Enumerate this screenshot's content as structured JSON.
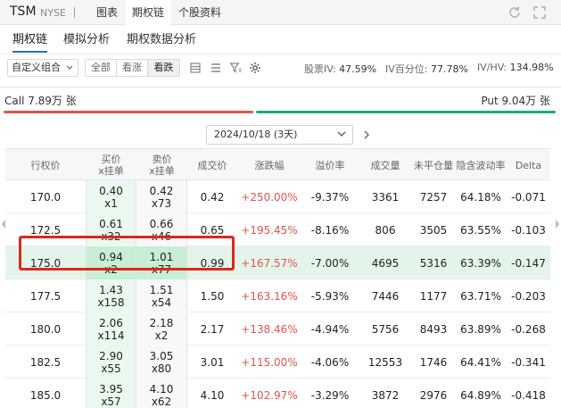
{
  "header": {
    "ticker": "TSM",
    "exchange": "NYSE",
    "tabs": [
      {
        "label": "图表"
      },
      {
        "label": "期权链"
      },
      {
        "label": "个股资料"
      }
    ]
  },
  "subtabs": [
    {
      "label": "期权链"
    },
    {
      "label": "模拟分析"
    },
    {
      "label": "期权数据分析"
    }
  ],
  "toolbar": {
    "combo": "自定义组合",
    "filters": [
      "全部",
      "看涨",
      "看跌"
    ],
    "stats": {
      "iv_label": "股票IV:",
      "iv_value": "47.59%",
      "ivpct_label": "IV百分位:",
      "ivpct_value": "77.78%",
      "ivhv_label": "IV/HV:",
      "ivhv_value": "134.98%"
    }
  },
  "summary": {
    "call": "Call 7.89万 张",
    "put": "Put 9.04万 张",
    "colors": {
      "call": "#e5534b",
      "put": "#1fae6b"
    }
  },
  "expiry": {
    "selected": "2024/10/18 (3天)"
  },
  "table": {
    "headers": {
      "strike": "行权价",
      "bid_1": "买价",
      "bid_2": "x挂单",
      "ask_1": "卖价",
      "ask_2": "x挂单",
      "last": "成交价",
      "change": "涨跌幅",
      "premium": "溢价率",
      "volume": "成交量",
      "oi": "未平仓量",
      "iv": "隐含波动率",
      "delta": "Delta"
    },
    "rows": [
      {
        "strike": "170.0",
        "bid": "0.40",
        "bid_size": "x1",
        "ask": "0.42",
        "ask_size": "x73",
        "last": "0.42",
        "change": "+250.00%",
        "premium": "-9.37%",
        "volume": "3361",
        "oi": "7257",
        "iv": "64.18%",
        "delta": "-0.071"
      },
      {
        "strike": "172.5",
        "bid": "0.61",
        "bid_size": "x32",
        "ask": "0.66",
        "ask_size": "x46",
        "last": "0.65",
        "change": "+195.45%",
        "premium": "-8.16%",
        "volume": "806",
        "oi": "3505",
        "iv": "63.55%",
        "delta": "-0.103"
      },
      {
        "strike": "175.0",
        "bid": "0.94",
        "bid_size": "x2",
        "ask": "1.01",
        "ask_size": "x77",
        "last": "0.99",
        "change": "+167.57%",
        "premium": "-7.00%",
        "volume": "4695",
        "oi": "5316",
        "iv": "63.39%",
        "delta": "-0.147"
      },
      {
        "strike": "177.5",
        "bid": "1.43",
        "bid_size": "x158",
        "ask": "1.51",
        "ask_size": "x54",
        "last": "1.50",
        "change": "+163.16%",
        "premium": "-5.93%",
        "volume": "7446",
        "oi": "1177",
        "iv": "63.71%",
        "delta": "-0.203"
      },
      {
        "strike": "180.0",
        "bid": "2.06",
        "bid_size": "x114",
        "ask": "2.18",
        "ask_size": "x2",
        "last": "2.17",
        "change": "+138.46%",
        "premium": "-4.94%",
        "volume": "5756",
        "oi": "8493",
        "iv": "63.89%",
        "delta": "-0.268"
      },
      {
        "strike": "182.5",
        "bid": "2.90",
        "bid_size": "x55",
        "ask": "3.05",
        "ask_size": "x80",
        "last": "3.01",
        "change": "+115.00%",
        "premium": "-4.06%",
        "volume": "12553",
        "oi": "1746",
        "iv": "64.41%",
        "delta": "-0.341"
      },
      {
        "strike": "185.0",
        "bid": "3.95",
        "bid_size": "x57",
        "ask": "4.10",
        "ask_size": "x62",
        "last": "4.10",
        "change": "+102.97%",
        "premium": "-3.29%",
        "volume": "3872",
        "oi": "2976",
        "iv": "64.89%",
        "delta": "-0.418"
      }
    ]
  }
}
